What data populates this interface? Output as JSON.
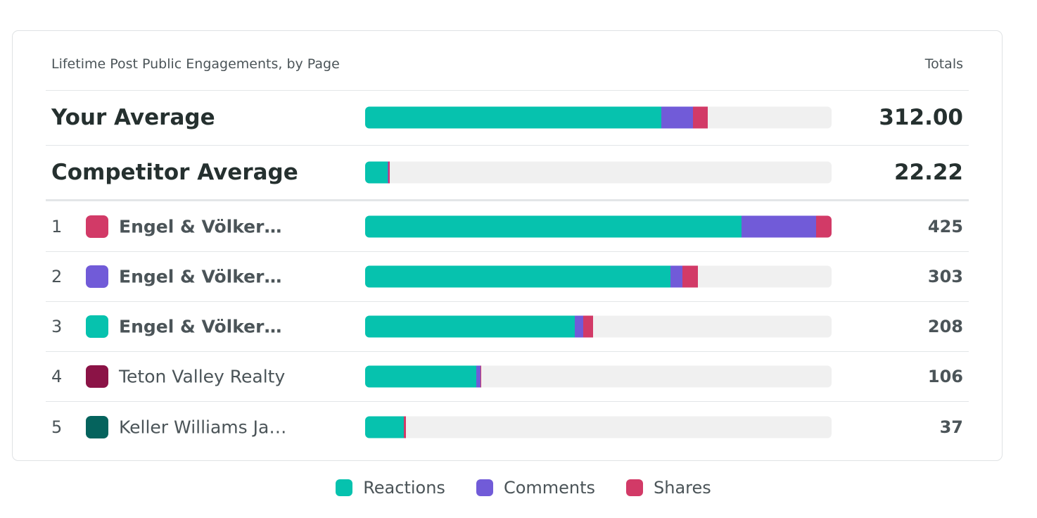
{
  "colors": {
    "reactions": "#06c2ae",
    "comments": "#715bd8",
    "shares": "#d23a67"
  },
  "header": {
    "title": "Lifetime Post Public Engagements, by Page",
    "totals": "Totals"
  },
  "averages": [
    {
      "label": "Your Average",
      "total": "312.00"
    },
    {
      "label": "Competitor Average",
      "total": "22.22"
    }
  ],
  "pages": [
    {
      "rank": "1",
      "name": "Engel & Völker…",
      "total": "425",
      "color": "#d23a67"
    },
    {
      "rank": "2",
      "name": "Engel & Völker…",
      "total": "303",
      "color": "#715bd8"
    },
    {
      "rank": "3",
      "name": "Engel & Völker…",
      "total": "208",
      "color": "#06c2ae"
    },
    {
      "rank": "4",
      "name": "Teton Valley Realty",
      "total": "106",
      "color": "#8b1346"
    },
    {
      "rank": "5",
      "name": "Keller Williams Ja…",
      "total": "37",
      "color": "#05635d"
    }
  ],
  "legend": {
    "reactions": "Reactions",
    "comments": "Comments",
    "shares": "Shares"
  },
  "chart_data": {
    "type": "bar",
    "orientation": "horizontal",
    "stacked": true,
    "title": "Lifetime Post Public Engagements, by Page",
    "categories": [
      "Your Average",
      "Competitor Average",
      "Engel & Völker…",
      "Engel & Völker…",
      "Engel & Völker…",
      "Teton Valley Realty",
      "Keller Williams Ja…"
    ],
    "xlim": [
      0,
      425
    ],
    "series": [
      {
        "name": "Reactions",
        "color": "#06c2ae",
        "values": [
          270,
          20.5,
          343,
          278,
          191,
          101,
          35
        ]
      },
      {
        "name": "Comments",
        "color": "#715bd8",
        "values": [
          29,
          0.5,
          68,
          11,
          8,
          4,
          0.5
        ]
      },
      {
        "name": "Shares",
        "color": "#d23a67",
        "values": [
          13,
          1.2,
          14,
          14,
          9,
          1,
          1.5
        ]
      }
    ],
    "totals": [
      312.0,
      22.22,
      425,
      303,
      208,
      106,
      37
    ],
    "legend_position": "bottom"
  }
}
